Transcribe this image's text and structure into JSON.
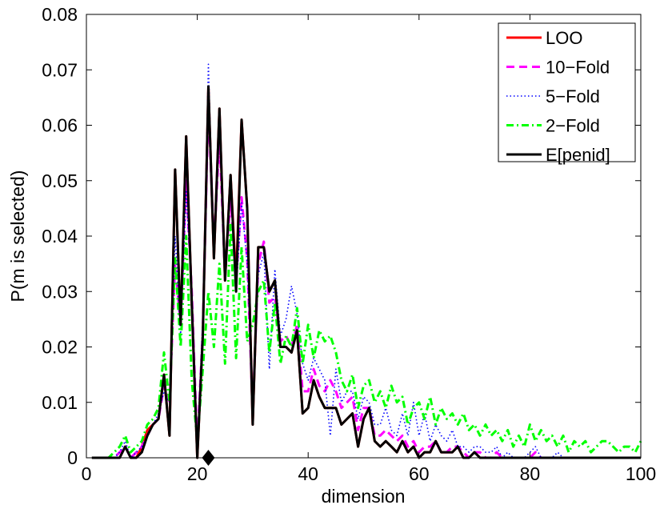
{
  "chart_data": {
    "type": "line",
    "title": "",
    "xlabel": "dimension",
    "ylabel": "P(m is selected)",
    "xlim": [
      0,
      100
    ],
    "ylim": [
      0,
      0.08
    ],
    "x_ticks": [
      0,
      20,
      40,
      60,
      80,
      100
    ],
    "y_ticks": [
      0,
      0.01,
      0.02,
      0.03,
      0.04,
      0.05,
      0.06,
      0.07,
      0.08
    ],
    "x_tick_labels": [
      "0",
      "20",
      "40",
      "60",
      "80",
      "100"
    ],
    "y_tick_labels": [
      "0",
      "0.01",
      "0.02",
      "0.03",
      "0.04",
      "0.05",
      "0.06",
      "0.07",
      "0.08"
    ],
    "grid": false,
    "legend_position": "top-right",
    "marker": {
      "shape": "diamond",
      "x": 22,
      "y": 0,
      "color": "#000000"
    },
    "series": [
      {
        "name": "LOO",
        "color": "#ff0000",
        "dash": "solid",
        "x": [
          1,
          2,
          3,
          4,
          5,
          6,
          7,
          8,
          9,
          10,
          11,
          12,
          13,
          14,
          15,
          16,
          17,
          18,
          19,
          20,
          21,
          22,
          23,
          24,
          25,
          26,
          27,
          28,
          29,
          30,
          31,
          32,
          33,
          34,
          35,
          36,
          37,
          38,
          39,
          40,
          41,
          42,
          43,
          44,
          45,
          46,
          47,
          48,
          49,
          50,
          51,
          52,
          53,
          54,
          55,
          56,
          57,
          58,
          59,
          60,
          61,
          62,
          63,
          64,
          65,
          66,
          67,
          68,
          69,
          70,
          71,
          72,
          73,
          74,
          75,
          76,
          77,
          78,
          79,
          80,
          81,
          82,
          83,
          84,
          85,
          86,
          87,
          88,
          89,
          90,
          91,
          92,
          93,
          94,
          95,
          96,
          97,
          98,
          99,
          100
        ],
        "y": [
          0,
          0,
          0,
          0,
          0,
          0,
          0.002,
          0,
          0,
          0.002,
          0.005,
          0.006,
          0.007,
          0.015,
          0.004,
          0.052,
          0.024,
          0.058,
          0.028,
          0,
          0.022,
          0.067,
          0.036,
          0.063,
          0.032,
          0.051,
          0.032,
          0.061,
          0.045,
          0.006,
          0.038,
          0.038,
          0.03,
          0.032,
          0.02,
          0.02,
          0.019,
          0.023,
          0.008,
          0.009,
          0.014,
          0.011,
          0.009,
          0.009,
          0.009,
          0.006,
          0.007,
          0.008,
          0.002,
          0.007,
          0.009,
          0.003,
          0.002,
          0.003,
          0.002,
          0.001,
          0.003,
          0.001,
          0.002,
          0,
          0.001,
          0.001,
          0.003,
          0.001,
          0.001,
          0.001,
          0.002,
          0,
          0,
          0.001,
          0,
          0,
          0,
          0,
          0,
          0,
          0,
          0,
          0,
          0,
          0,
          0,
          0,
          0,
          0,
          0,
          0,
          0,
          0,
          0,
          0,
          0,
          0,
          0,
          0,
          0,
          0,
          0,
          0,
          0
        ]
      },
      {
        "name": "10−Fold",
        "color": "#ff00ff",
        "dash": "dashed",
        "x": [
          1,
          2,
          3,
          4,
          5,
          6,
          7,
          8,
          9,
          10,
          11,
          12,
          13,
          14,
          15,
          16,
          17,
          18,
          19,
          20,
          21,
          22,
          23,
          24,
          25,
          26,
          27,
          28,
          29,
          30,
          31,
          32,
          33,
          34,
          35,
          36,
          37,
          38,
          39,
          40,
          41,
          42,
          43,
          44,
          45,
          46,
          47,
          48,
          49,
          50,
          51,
          52,
          53,
          54,
          55,
          56,
          57,
          58,
          59,
          60,
          61,
          62,
          63,
          64,
          65,
          66,
          67,
          68,
          69,
          70,
          71,
          72,
          73,
          74,
          75,
          76,
          77,
          78,
          79,
          80,
          81,
          82,
          83,
          84,
          85,
          86,
          87,
          88,
          89,
          90,
          91,
          92,
          93,
          94,
          95,
          96,
          97,
          98,
          99,
          100
        ],
        "y": [
          0,
          0,
          0,
          0,
          0,
          0.001,
          0.002,
          0,
          0.001,
          0.002,
          0.004,
          0.006,
          0.007,
          0.013,
          0.01,
          0.035,
          0.024,
          0.05,
          0.03,
          0.002,
          0.023,
          0.064,
          0.038,
          0.058,
          0.033,
          0.047,
          0.032,
          0.047,
          0.036,
          0.008,
          0.035,
          0.039,
          0.028,
          0.029,
          0.021,
          0.022,
          0.02,
          0.024,
          0.012,
          0.012,
          0.016,
          0.013,
          0.012,
          0.014,
          0.012,
          0.009,
          0.01,
          0.011,
          0.005,
          0.009,
          0.009,
          0.004,
          0.004,
          0.005,
          0.004,
          0.003,
          0.004,
          0.002,
          0.003,
          0.001,
          0.002,
          0.002,
          0.003,
          0.001,
          0.001,
          0.002,
          0.002,
          0.001,
          0,
          0.001,
          0.001,
          0,
          0,
          0.001,
          0,
          0,
          0,
          0,
          0,
          0,
          0.001,
          0,
          0,
          0,
          0,
          0,
          0,
          0,
          0,
          0,
          0,
          0,
          0,
          0,
          0,
          0,
          0,
          0,
          0,
          0
        ]
      },
      {
        "name": "5−Fold",
        "color": "#0000ff",
        "dash": "dotted",
        "x": [
          1,
          2,
          3,
          4,
          5,
          6,
          7,
          8,
          9,
          10,
          11,
          12,
          13,
          14,
          15,
          16,
          17,
          18,
          19,
          20,
          21,
          22,
          23,
          24,
          25,
          26,
          27,
          28,
          29,
          30,
          31,
          32,
          33,
          34,
          35,
          36,
          37,
          38,
          39,
          40,
          41,
          42,
          43,
          44,
          45,
          46,
          47,
          48,
          49,
          50,
          51,
          52,
          53,
          54,
          55,
          56,
          57,
          58,
          59,
          60,
          61,
          62,
          63,
          64,
          65,
          66,
          67,
          68,
          69,
          70,
          71,
          72,
          73,
          74,
          75,
          76,
          77,
          78,
          79,
          80,
          81,
          82,
          83,
          84,
          85,
          86,
          87,
          88,
          89,
          90,
          91,
          92,
          93,
          94,
          95,
          96,
          97,
          98,
          99,
          100
        ],
        "y": [
          0,
          0,
          0,
          0,
          0,
          0.001,
          0.003,
          0,
          0.001,
          0.002,
          0.004,
          0.006,
          0.008,
          0.012,
          0.01,
          0.04,
          0.022,
          0.048,
          0.03,
          0.002,
          0.025,
          0.071,
          0.036,
          0.06,
          0.034,
          0.05,
          0.03,
          0.046,
          0.035,
          0.01,
          0.033,
          0.037,
          0.016,
          0.034,
          0.022,
          0.025,
          0.031,
          0.026,
          0.017,
          0.014,
          0.018,
          0.016,
          0.014,
          0.004,
          0.016,
          0.01,
          0.012,
          0.012,
          0.007,
          0.011,
          0.01,
          0.006,
          0.006,
          0.009,
          0.005,
          0.004,
          0.008,
          0.004,
          0.01,
          0.004,
          0.008,
          0.003,
          0.006,
          0.004,
          0.003,
          0.005,
          0.002,
          0.002,
          0.001,
          0.002,
          0.002,
          0.001,
          0.001,
          0.002,
          0,
          0.001,
          0,
          0,
          0,
          0.001,
          0.002,
          0,
          0,
          0,
          0.001,
          0,
          0,
          0,
          0,
          0,
          0,
          0,
          0,
          0,
          0,
          0,
          0,
          0,
          0,
          0
        ]
      },
      {
        "name": "2−Fold",
        "color": "#00ff00",
        "dash": "dashdot",
        "x": [
          1,
          2,
          3,
          4,
          5,
          6,
          7,
          8,
          9,
          10,
          11,
          12,
          13,
          14,
          15,
          16,
          17,
          18,
          19,
          20,
          21,
          22,
          23,
          24,
          25,
          26,
          27,
          28,
          29,
          30,
          31,
          32,
          33,
          34,
          35,
          36,
          37,
          38,
          39,
          40,
          41,
          42,
          43,
          44,
          45,
          46,
          47,
          48,
          49,
          50,
          51,
          52,
          53,
          54,
          55,
          56,
          57,
          58,
          59,
          60,
          61,
          62,
          63,
          64,
          65,
          66,
          67,
          68,
          69,
          70,
          71,
          72,
          73,
          74,
          75,
          76,
          77,
          78,
          79,
          80,
          81,
          82,
          83,
          84,
          85,
          86,
          87,
          88,
          89,
          90,
          91,
          92,
          93,
          94,
          95,
          96,
          97,
          98,
          99,
          100
        ],
        "y": [
          0,
          0,
          0,
          0,
          0.001,
          0.002,
          0.004,
          0.001,
          0.002,
          0.003,
          0.006,
          0.007,
          0.009,
          0.019,
          0.01,
          0.036,
          0.02,
          0.04,
          0.014,
          0.003,
          0.016,
          0.03,
          0.02,
          0.035,
          0.017,
          0.042,
          0.018,
          0.038,
          0.021,
          0.024,
          0.03,
          0.032,
          0.019,
          0.028,
          0.017,
          0.022,
          0.02,
          0.027,
          0.017,
          0.024,
          0.018,
          0.023,
          0.021,
          0.022,
          0.019,
          0.014,
          0.012,
          0.015,
          0.009,
          0.013,
          0.014,
          0.01,
          0.012,
          0.009,
          0.013,
          0.01,
          0.011,
          0.006,
          0.009,
          0.01,
          0.007,
          0.011,
          0.006,
          0.009,
          0.007,
          0.008,
          0.006,
          0.008,
          0.005,
          0.006,
          0.004,
          0.006,
          0.004,
          0.005,
          0.003,
          0.005,
          0.002,
          0.004,
          0.002,
          0.006,
          0.003,
          0.005,
          0.003,
          0.004,
          0.002,
          0.004,
          0.001,
          0.003,
          0.002,
          0.003,
          0.001,
          0.002,
          0.003,
          0.003,
          0.002,
          0.001,
          0.002,
          0.002,
          0.001,
          0.003
        ]
      },
      {
        "name": "E[penid]",
        "color": "#000000",
        "dash": "solid",
        "x": [
          1,
          2,
          3,
          4,
          5,
          6,
          7,
          8,
          9,
          10,
          11,
          12,
          13,
          14,
          15,
          16,
          17,
          18,
          19,
          20,
          21,
          22,
          23,
          24,
          25,
          26,
          27,
          28,
          29,
          30,
          31,
          32,
          33,
          34,
          35,
          36,
          37,
          38,
          39,
          40,
          41,
          42,
          43,
          44,
          45,
          46,
          47,
          48,
          49,
          50,
          51,
          52,
          53,
          54,
          55,
          56,
          57,
          58,
          59,
          60,
          61,
          62,
          63,
          64,
          65,
          66,
          67,
          68,
          69,
          70,
          71,
          72,
          73,
          74,
          75,
          76,
          77,
          78,
          79,
          80,
          81,
          82,
          83,
          84,
          85,
          86,
          87,
          88,
          89,
          90,
          91,
          92,
          93,
          94,
          95,
          96,
          97,
          98,
          99,
          100
        ],
        "y": [
          0,
          0,
          0,
          0,
          0,
          0,
          0.002,
          0,
          0,
          0.001,
          0.004,
          0.006,
          0.007,
          0.015,
          0.004,
          0.052,
          0.024,
          0.058,
          0.028,
          0,
          0.022,
          0.067,
          0.036,
          0.063,
          0.032,
          0.051,
          0.03,
          0.061,
          0.045,
          0.006,
          0.038,
          0.038,
          0.03,
          0.032,
          0.02,
          0.02,
          0.019,
          0.023,
          0.008,
          0.009,
          0.014,
          0.011,
          0.009,
          0.009,
          0.009,
          0.006,
          0.007,
          0.008,
          0.002,
          0.007,
          0.009,
          0.003,
          0.002,
          0.003,
          0.002,
          0.001,
          0.003,
          0.001,
          0.002,
          0,
          0.001,
          0.001,
          0.003,
          0.001,
          0.001,
          0.001,
          0.002,
          0,
          0,
          0.001,
          0,
          0,
          0,
          0,
          0,
          0,
          0,
          0,
          0,
          0,
          0,
          0,
          0,
          0,
          0,
          0,
          0,
          0,
          0,
          0,
          0,
          0,
          0,
          0,
          0,
          0,
          0,
          0,
          0,
          0
        ]
      }
    ]
  }
}
